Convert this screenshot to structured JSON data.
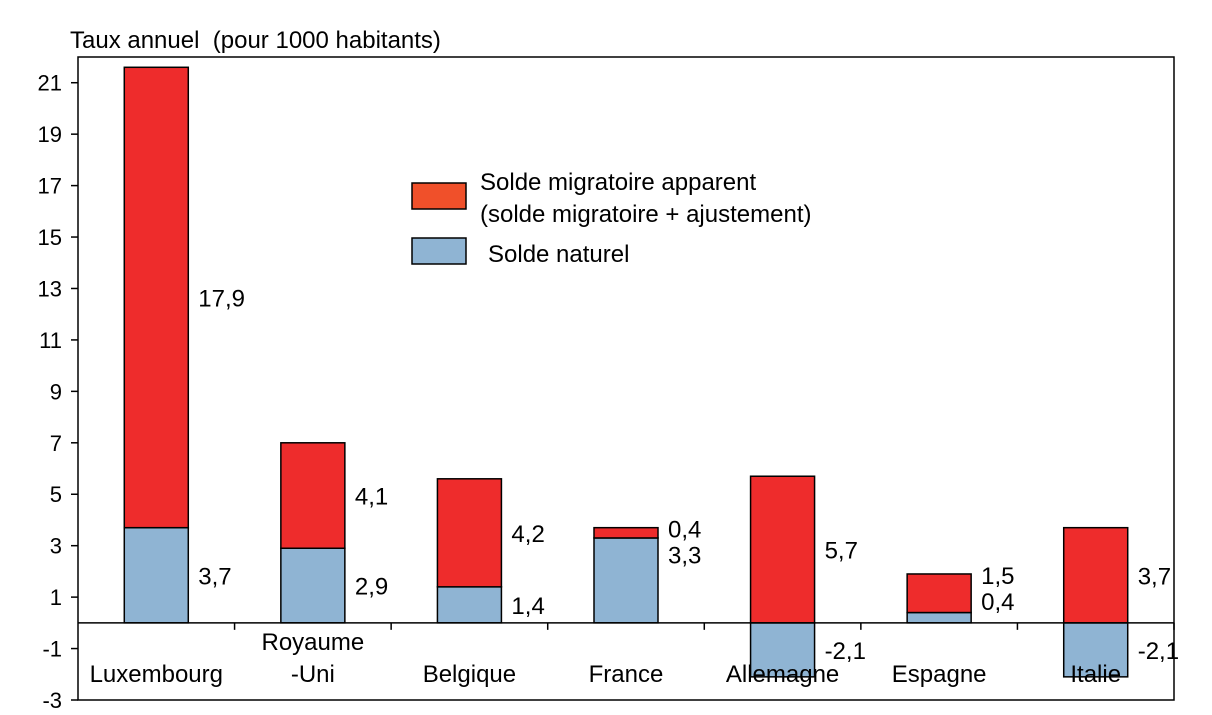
{
  "chart_data": {
    "type": "bar",
    "stacked": true,
    "ylabel": "Taux annuel  (pour 1000 habitants)",
    "ylim": [
      -3,
      22
    ],
    "yticks": [
      21,
      19,
      17,
      15,
      13,
      11,
      9,
      7,
      5,
      3,
      1,
      -1,
      -3
    ],
    "categories": [
      [
        "Luxembourg"
      ],
      [
        "Royaume",
        "-Uni"
      ],
      [
        "Belgique"
      ],
      [
        "France"
      ],
      [
        "Allemagne"
      ],
      [
        "Espagne"
      ],
      [
        "Italie"
      ]
    ],
    "series": [
      {
        "name": "Solde naturel",
        "color": "#8fb4d3",
        "values": [
          3.7,
          2.9,
          1.4,
          3.3,
          -2.1,
          0.4,
          -2.1
        ],
        "labels": [
          "3,7",
          "2,9",
          "1,4",
          "3,3",
          "-2,1",
          "0,4",
          "-2,1"
        ]
      },
      {
        "name": "Solde migratoire apparent",
        "name_line2": "(solde migratoire + ajustement)",
        "color": "#ee2c2c",
        "legend_color": "#f0502a",
        "values": [
          17.9,
          4.1,
          4.2,
          0.4,
          5.7,
          1.5,
          3.7
        ],
        "labels": [
          "17,9",
          "4,1",
          "4,2",
          "0,4",
          "5,7",
          "1,5",
          "3,7"
        ]
      }
    ],
    "legend": {
      "position": "top-center",
      "order": [
        1,
        0
      ]
    },
    "grid": false
  }
}
